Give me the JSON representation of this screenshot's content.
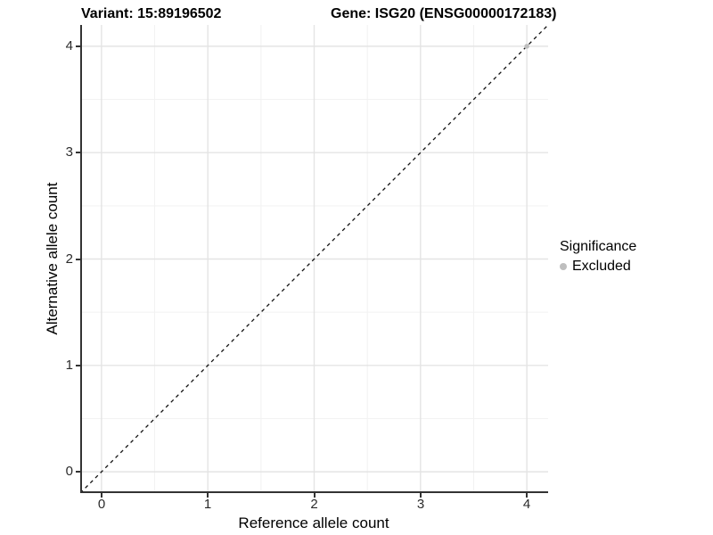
{
  "titles": {
    "variant": "Variant: 15:89196502",
    "gene": "Gene: ISG20 (ENSG00000172183)"
  },
  "chart_data": {
    "type": "scatter",
    "xlabel": "Reference allele count",
    "ylabel": "Alternative allele count",
    "xlim": [
      -0.2,
      4.2
    ],
    "ylim": [
      -0.2,
      4.2
    ],
    "x_ticks": [
      0,
      1,
      2,
      3,
      4
    ],
    "y_ticks": [
      0,
      1,
      2,
      3,
      4
    ],
    "x_tick_labels": [
      "0",
      "1",
      "2",
      "3",
      "4"
    ],
    "y_tick_labels": [
      "0",
      "1",
      "2",
      "3",
      "4"
    ],
    "x_minor_ticks": [
      0.5,
      1.5,
      2.5,
      3.5
    ],
    "y_minor_ticks": [
      0.5,
      1.5,
      2.5,
      3.5
    ],
    "grid": "on",
    "abline": {
      "slope": 1,
      "intercept": 0,
      "style": "dashed",
      "color": "#111111"
    },
    "series": [
      {
        "name": "Excluded",
        "color": "#bebebe",
        "points": [
          [
            4,
            4
          ]
        ],
        "point_radius": 2.8
      }
    ],
    "legend": {
      "title": "Significance",
      "position": "right",
      "entries": [
        {
          "label": "Excluded",
          "color": "#bebebe"
        }
      ]
    },
    "colors": {
      "grid_major": "#e4e4e4",
      "grid_minor": "#f2f2f2",
      "axis_line": "#333333",
      "background": "#ffffff"
    }
  }
}
